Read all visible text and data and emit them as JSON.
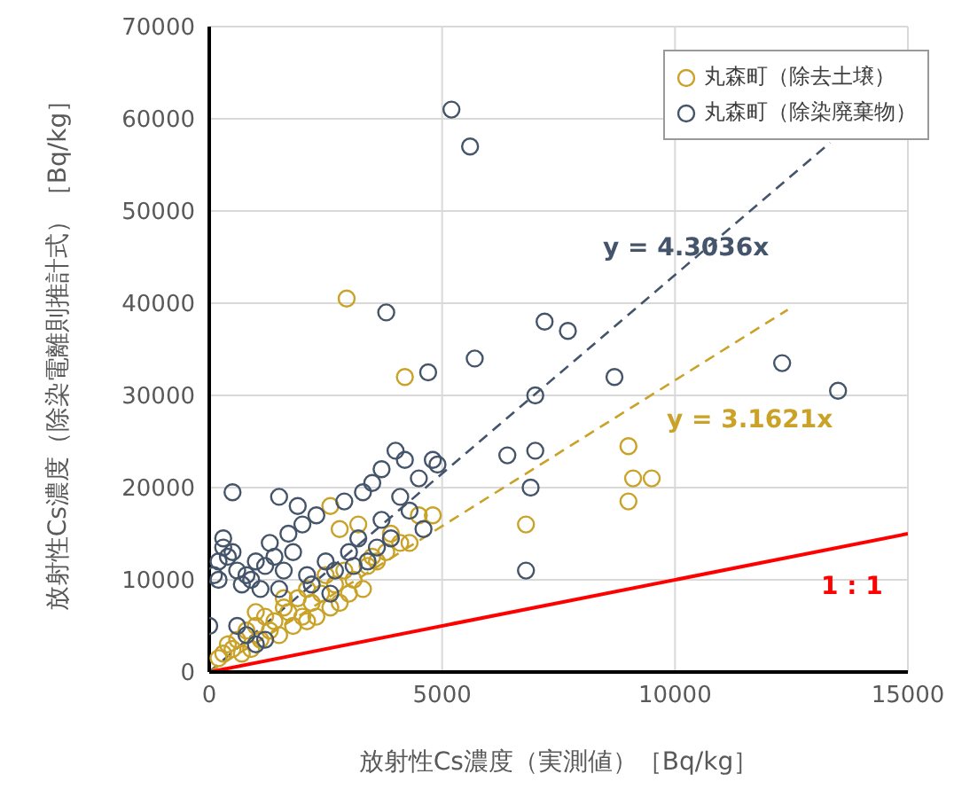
{
  "chart_data": {
    "type": "scatter",
    "xlabel": "放射性Cs濃度（実測値）［Bq/kg］",
    "ylabel": "放射性Cs濃度（除染電離則推計式）［Bq/kg］",
    "xlim": [
      0,
      15000
    ],
    "xticks": [
      0,
      5000,
      10000,
      15000
    ],
    "ylim": [
      0,
      70000
    ],
    "yticks": [
      0,
      10000,
      20000,
      30000,
      40000,
      50000,
      60000,
      70000
    ],
    "grid": true,
    "legend": "top right",
    "marker": "circle",
    "series": [
      {
        "name": "丸森町（除去土壌）",
        "color": "#c9a227",
        "x": [
          2950,
          4200,
          6800,
          9000,
          9100,
          9500,
          9000,
          2600,
          2800,
          3200,
          4500,
          4800,
          4300,
          2500,
          2100,
          2900,
          3000,
          3400,
          3600,
          1900,
          1600,
          1200,
          1000,
          800,
          600,
          400,
          300,
          1400,
          1700,
          2200,
          2400,
          2700,
          3100,
          3500,
          3800,
          2000,
          1500,
          1100,
          900,
          700,
          1300,
          1800,
          2300,
          2600,
          3300,
          500,
          200,
          1000,
          1600,
          2100,
          2800,
          3900,
          4100
        ],
        "values": [
          40500,
          32000,
          16000,
          24500,
          21000,
          21000,
          18500,
          18000,
          15500,
          16000,
          17000,
          17000,
          14000,
          10500,
          9000,
          11000,
          8500,
          11500,
          12000,
          8000,
          7000,
          6000,
          5000,
          4500,
          3500,
          3000,
          2000,
          5500,
          6500,
          7500,
          8500,
          9500,
          10000,
          12500,
          13000,
          6000,
          4000,
          3500,
          2500,
          2000,
          4500,
          5000,
          6000,
          7000,
          9000,
          2500,
          1500,
          6500,
          8000,
          5500,
          7500,
          15000,
          14000
        ]
      },
      {
        "name": "丸森町（除染廃棄物）",
        "color": "#44546a",
        "x": [
          5200,
          5600,
          3800,
          7200,
          7700,
          12300,
          13500,
          4700,
          5700,
          8700,
          7000,
          6400,
          7000,
          6800,
          6900,
          4000,
          4200,
          4500,
          4800,
          4900,
          3500,
          3700,
          3300,
          1500,
          500,
          1900,
          2900,
          4100,
          4300,
          3700,
          3900,
          3600,
          2300,
          2000,
          1700,
          1300,
          1000,
          800,
          600,
          400,
          300,
          200,
          100,
          700,
          900,
          1100,
          1200,
          1400,
          1800,
          2500,
          2700,
          3000,
          3200,
          3400,
          2200,
          1600,
          500,
          300,
          800,
          1000,
          1200,
          600,
          200,
          0,
          1500,
          2100,
          2600,
          3100,
          4600
        ],
        "values": [
          61000,
          57000,
          39000,
          38000,
          37000,
          33500,
          30500,
          32500,
          34000,
          32000,
          30000,
          23500,
          24000,
          11000,
          20000,
          24000,
          23000,
          21000,
          23000,
          22500,
          20500,
          22000,
          19500,
          19000,
          19500,
          18000,
          18500,
          19000,
          17500,
          16500,
          14500,
          13500,
          17000,
          16000,
          15000,
          14000,
          12000,
          10500,
          11000,
          12500,
          13500,
          10000,
          10500,
          9500,
          10000,
          9000,
          11500,
          12500,
          13000,
          12000,
          11000,
          13000,
          14500,
          12000,
          9500,
          11000,
          13000,
          14500,
          4000,
          3000,
          3500,
          5000,
          12000,
          5000,
          9000,
          10500,
          8500,
          11500,
          15500
        ]
      },
      {
        "type": "line",
        "color": "#44546a",
        "line_style": "dashed",
        "marker": "none",
        "x": [
          0,
          13330
        ],
        "values": [
          0,
          57400
        ]
      },
      {
        "type": "line",
        "color": "#c9a227",
        "line_style": "dashed",
        "marker": "none",
        "x": [
          0,
          12420
        ],
        "values": [
          0,
          39300
        ]
      },
      {
        "type": "line",
        "color": "#ff0000",
        "line_style": "solid",
        "marker": "none",
        "x": [
          0,
          15000
        ],
        "values": [
          0,
          15000
        ]
      }
    ],
    "annotations": [
      "y = 4.3036x",
      "y = 3.1621x",
      "1 : 1"
    ]
  }
}
